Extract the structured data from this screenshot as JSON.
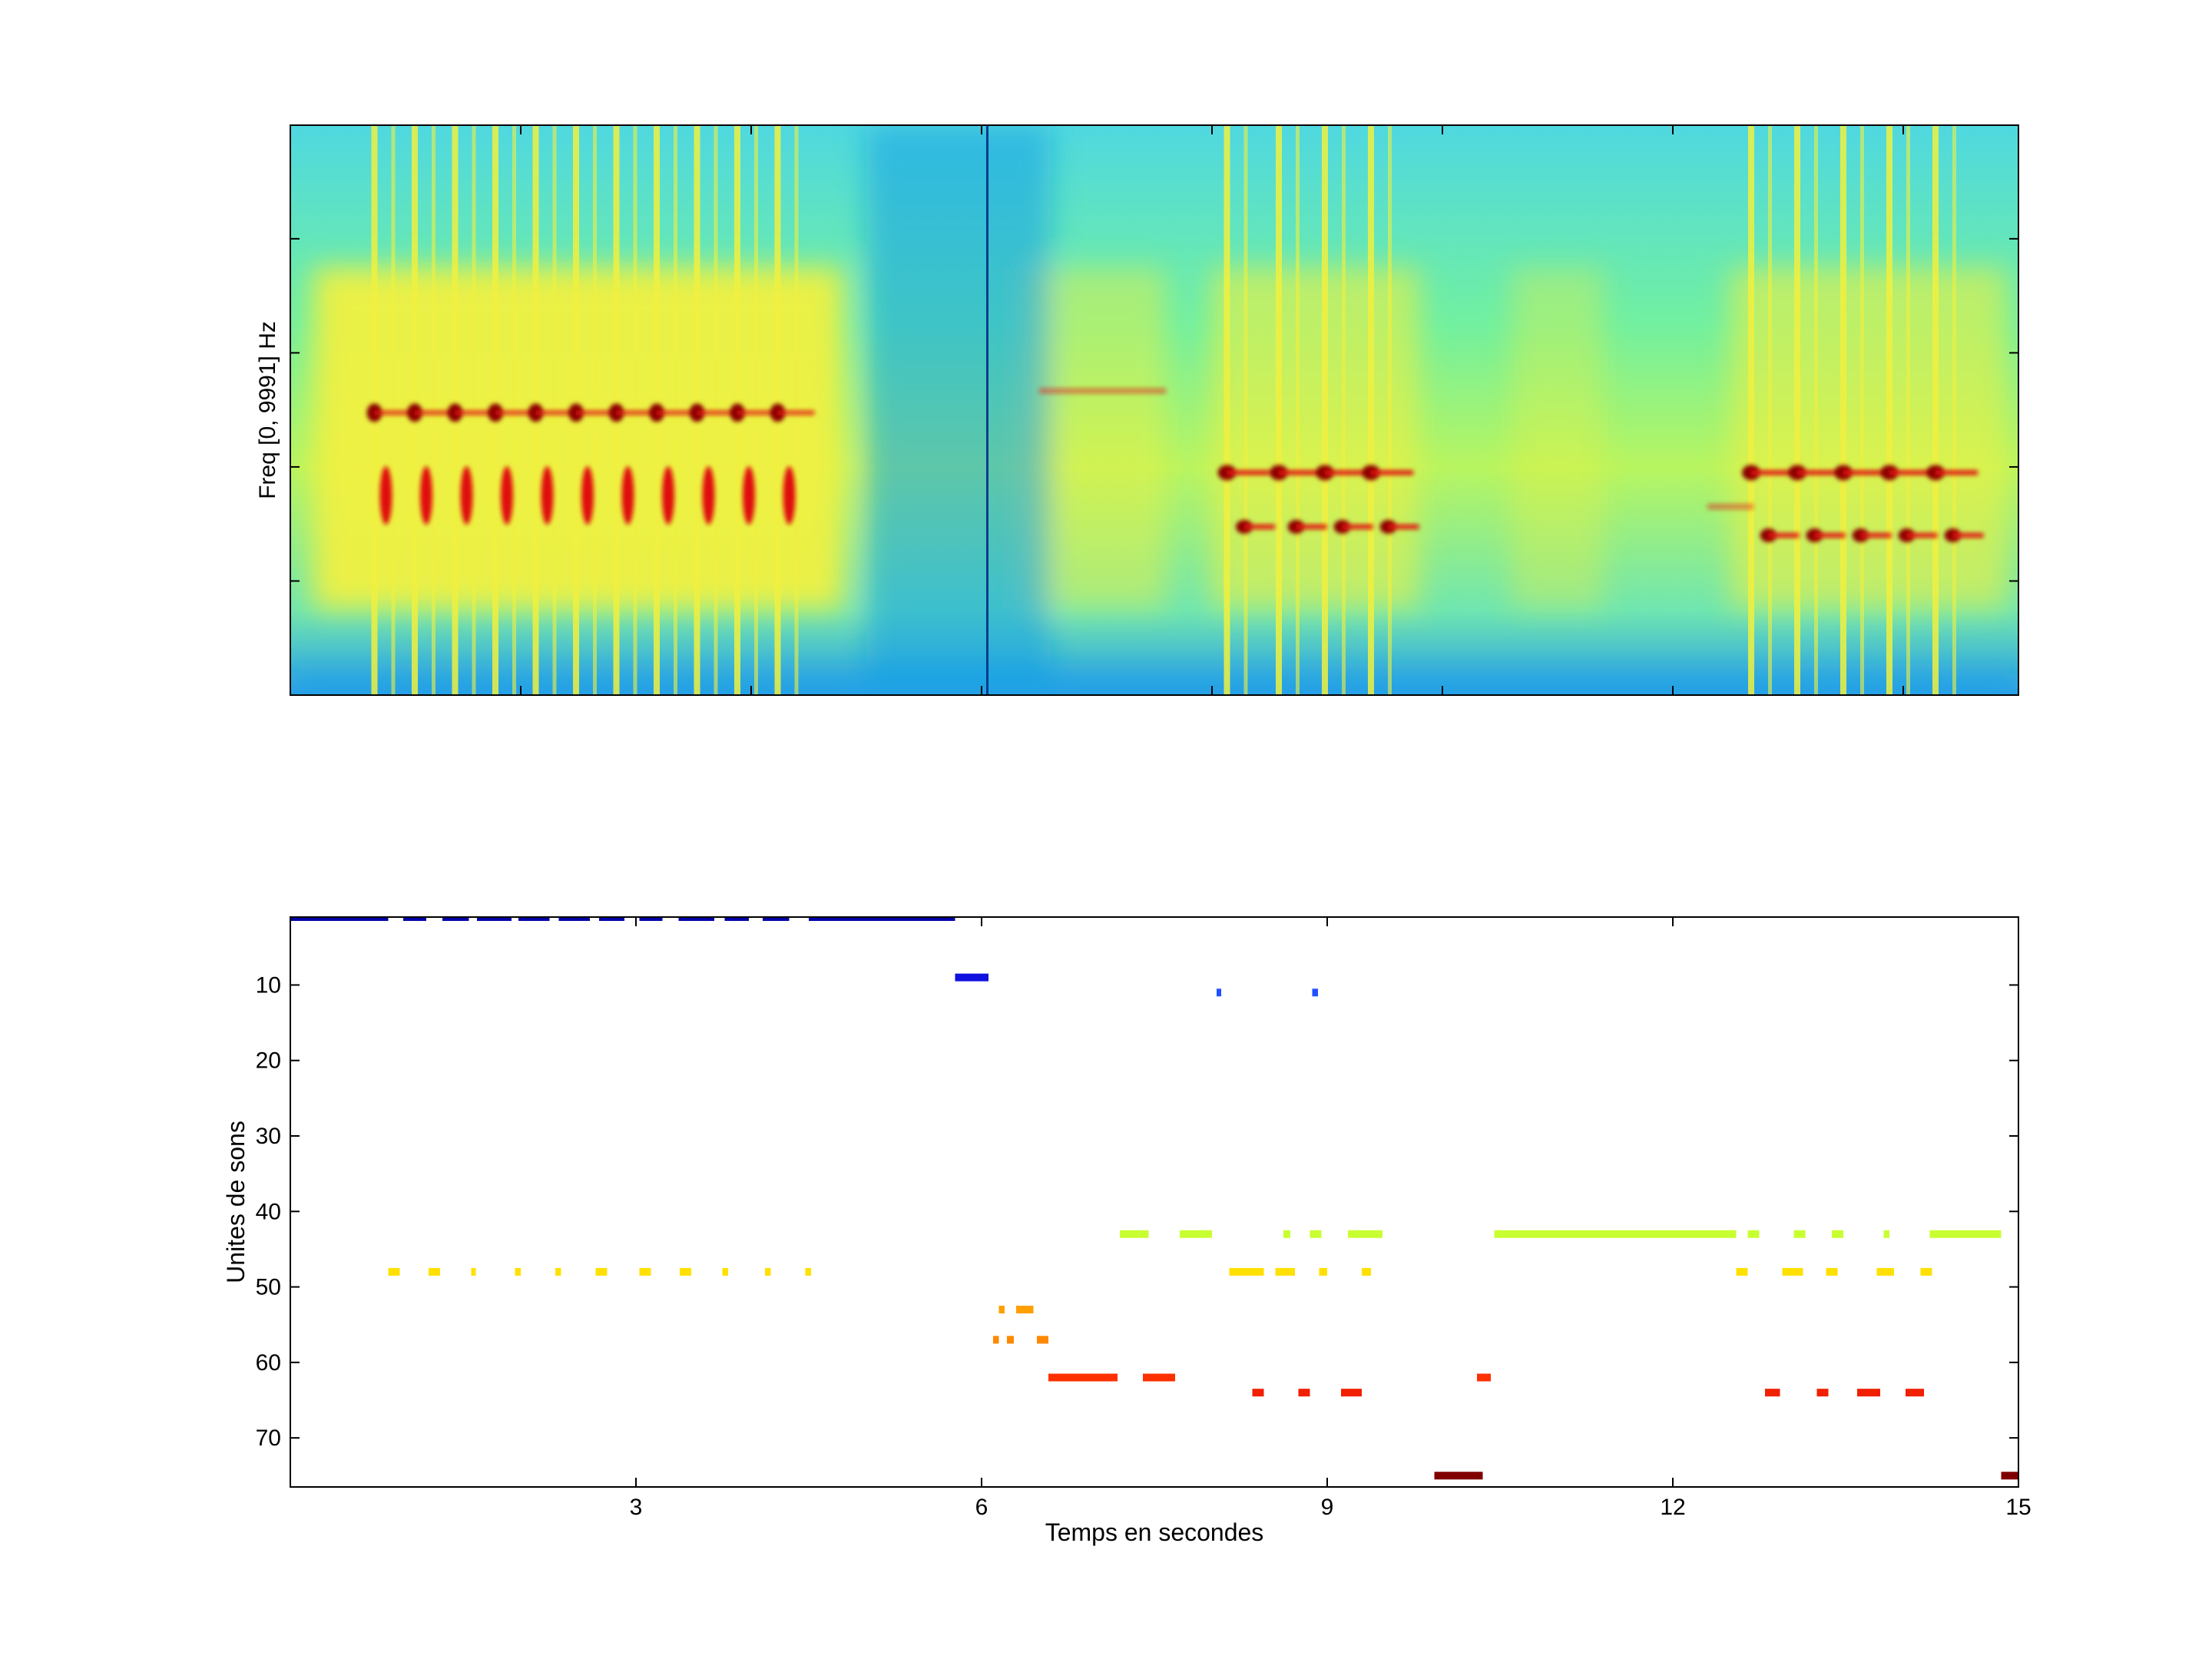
{
  "figure": {
    "spectrogram": {
      "ylabel": "Freq [0, 9991] Hz",
      "colormap": "jet",
      "colors": {
        "background": "#55e8a8",
        "cold": "#1aa0e6",
        "warm": "#f0f040",
        "hot": "#e01010",
        "darkHot": "#8a0000"
      }
    }
  },
  "chart_data": [
    {
      "type": "heatmap",
      "title": "",
      "xlabel": "",
      "ylabel": "Freq [0, 9991] Hz",
      "xlim": [
        0,
        15
      ],
      "ylim": [
        0,
        9991
      ],
      "x_ticks": [
        0,
        2,
        4,
        6,
        8,
        10,
        12,
        14
      ],
      "y_ticks": [
        2000,
        4000,
        6000,
        8000
      ],
      "tick_labels_shown": false,
      "onsets_group1_s": [
        0.73,
        1.08,
        1.43,
        1.78,
        2.13,
        2.48,
        2.83,
        3.18,
        3.53,
        3.88,
        4.23
      ],
      "onsets_group2_s": [
        8.13,
        8.58,
        8.98,
        9.38
      ],
      "onsets_group3_s": [
        12.68,
        13.08,
        13.48,
        13.88,
        14.28
      ],
      "dark_vertical_line_s": 6.05
    },
    {
      "type": "scatter",
      "title": "",
      "xlabel": "Temps en secondes",
      "ylabel": "Unites de sons",
      "xlim": [
        0,
        15
      ],
      "ylim": [
        1,
        76.5
      ],
      "y_reversed": true,
      "x_ticks": [
        3,
        6,
        9,
        12,
        15
      ],
      "y_ticks": [
        10,
        20,
        30,
        40,
        50,
        60,
        70
      ],
      "segments": [
        {
          "unit": 1,
          "color": "#0000a8",
          "intervals": [
            [
              0,
              0.85
            ],
            [
              0.98,
              1.18
            ],
            [
              1.32,
              1.55
            ],
            [
              1.62,
              1.92
            ],
            [
              1.98,
              2.25
            ],
            [
              2.33,
              2.6
            ],
            [
              2.68,
              2.9
            ],
            [
              3.03,
              3.23
            ],
            [
              3.37,
              3.68
            ],
            [
              3.77,
              3.98
            ],
            [
              4.1,
              4.33
            ],
            [
              4.5,
              5.77
            ]
          ]
        },
        {
          "unit": 9,
          "color": "#1010e0",
          "intervals": [
            [
              5.77,
              6.06
            ]
          ]
        },
        {
          "unit": 11,
          "color": "#2050ff",
          "intervals": [
            [
              8.04,
              8.08
            ],
            [
              8.87,
              8.92
            ]
          ]
        },
        {
          "unit": 43,
          "color": "#c8ff30",
          "intervals": [
            [
              7.2,
              7.45
            ],
            [
              7.72,
              8.0
            ],
            [
              8.62,
              8.68
            ],
            [
              8.85,
              8.95
            ],
            [
              9.18,
              9.48
            ],
            [
              10.45,
              12.55
            ],
            [
              12.65,
              12.75
            ],
            [
              13.05,
              13.15
            ],
            [
              13.38,
              13.48
            ],
            [
              13.83,
              13.88
            ],
            [
              14.23,
              14.85
            ]
          ]
        },
        {
          "unit": 48,
          "color": "#ffe000",
          "intervals": [
            [
              0.85,
              0.95
            ],
            [
              1.2,
              1.3
            ],
            [
              1.57,
              1.6
            ],
            [
              1.95,
              2.0
            ],
            [
              2.3,
              2.35
            ],
            [
              2.65,
              2.75
            ],
            [
              3.03,
              3.13
            ],
            [
              3.38,
              3.48
            ],
            [
              3.75,
              3.8
            ],
            [
              4.12,
              4.17
            ],
            [
              4.47,
              4.52
            ],
            [
              8.15,
              8.45
            ],
            [
              8.55,
              8.72
            ],
            [
              8.93,
              9.0
            ],
            [
              9.3,
              9.38
            ],
            [
              12.55,
              12.65
            ],
            [
              12.95,
              13.13
            ],
            [
              13.33,
              13.43
            ],
            [
              13.77,
              13.92
            ],
            [
              14.15,
              14.25
            ]
          ]
        },
        {
          "unit": 53,
          "color": "#ffa000",
          "intervals": [
            [
              6.15,
              6.2
            ],
            [
              6.3,
              6.45
            ]
          ]
        },
        {
          "unit": 57,
          "color": "#ff8800",
          "intervals": [
            [
              6.1,
              6.15
            ],
            [
              6.22,
              6.28
            ],
            [
              6.48,
              6.58
            ]
          ]
        },
        {
          "unit": 62,
          "color": "#ff3000",
          "intervals": [
            [
              6.58,
              7.18
            ],
            [
              7.4,
              7.68
            ],
            [
              10.3,
              10.42
            ]
          ]
        },
        {
          "unit": 64,
          "color": "#f02000",
          "intervals": [
            [
              8.35,
              8.45
            ],
            [
              8.75,
              8.85
            ],
            [
              9.12,
              9.3
            ],
            [
              12.8,
              12.93
            ],
            [
              13.25,
              13.35
            ],
            [
              13.6,
              13.8
            ],
            [
              14.02,
              14.18
            ]
          ]
        },
        {
          "unit": 75,
          "color": "#800000",
          "intervals": [
            [
              9.93,
              10.35
            ],
            [
              14.85,
              15.0
            ]
          ]
        }
      ]
    }
  ]
}
